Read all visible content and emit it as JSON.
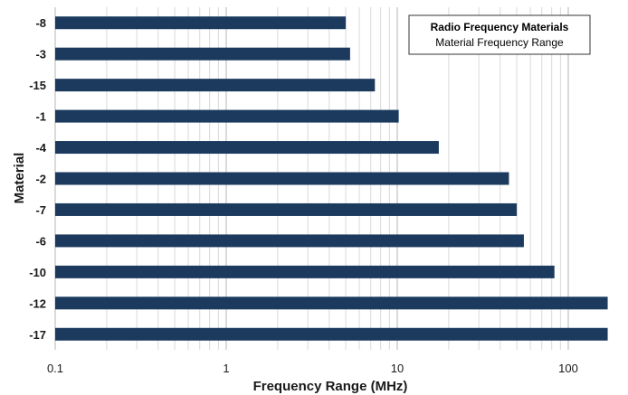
{
  "chart_data": {
    "type": "bar",
    "orientation": "horizontal",
    "categories": [
      "-8",
      "-3",
      "-15",
      "-1",
      "-4",
      "-2",
      "-7",
      "-6",
      "-10",
      "-12",
      "-17"
    ],
    "values": [
      5.0,
      5.3,
      7.4,
      10.2,
      17.5,
      45,
      50,
      55,
      83,
      170,
      170
    ],
    "xlabel": "Frequency  Range (MHz)",
    "ylabel": "Material",
    "xscale": "log",
    "xlim": [
      0.1,
      180
    ],
    "xticks": [
      "0.1",
      "1",
      "10",
      "100"
    ],
    "grid": "vertical minor and major",
    "bar_color": "#1b3a5e",
    "legend": {
      "title": "Radio Frequency Materials",
      "subtitle": "Material Frequency Range",
      "placement": "top-right"
    }
  }
}
